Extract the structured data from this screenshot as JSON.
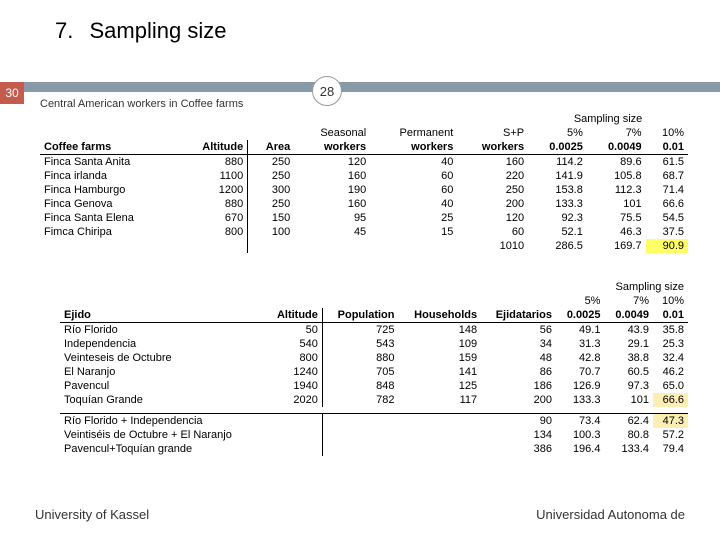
{
  "title_num": "7.",
  "title_text": "Sampling size",
  "page_badge": "30",
  "inner_badge": "28",
  "footer_left": "University of Kassel",
  "footer_right": "Universidad Autonoma de",
  "t1": {
    "caption": "Central American workers in Coffee farms",
    "group_header": "Sampling size",
    "c0": "Coffee farms",
    "c1": "Altitude",
    "c2": "Area",
    "c3a": "Seasonal",
    "c3b": "workers",
    "c4a": "Permanent",
    "c4b": "workers",
    "c5a": "S+P",
    "c5b": "workers",
    "c6": "5%",
    "c7": "7%",
    "c8": "10%",
    "r1": {
      "n": "Finca Santa Anita",
      "alt": "880",
      "area": "250",
      "sw": "120",
      "pw": "40",
      "sp": "160",
      "p5": "114.2",
      "p7": "89.6",
      "p10": "61.5"
    },
    "r2": {
      "n": "Finca irlanda",
      "alt": "1100",
      "area": "250",
      "sw": "160",
      "pw": "60",
      "sp": "220",
      "p5": "141.9",
      "p7": "105.8",
      "p10": "68.7"
    },
    "r3": {
      "n": "Finca Hamburgo",
      "alt": "1200",
      "area": "300",
      "sw": "190",
      "pw": "60",
      "sp": "250",
      "p5": "153.8",
      "p7": "112.3",
      "p10": "71.4"
    },
    "r4": {
      "n": "Finca Genova",
      "alt": "880",
      "area": "250",
      "sw": "160",
      "pw": "40",
      "sp": "200",
      "p5": "133.3",
      "p7": "101",
      "p10": "66.6"
    },
    "r5": {
      "n": "Finca Santa Elena",
      "alt": "670",
      "area": "150",
      "sw": "95",
      "pw": "25",
      "sp": "120",
      "p5": "92.3",
      "p7": "75.5",
      "p10": "54.5"
    },
    "r6": {
      "n": "Fimca Chiripa",
      "alt": "800",
      "area": "100",
      "sw": "45",
      "pw": "15",
      "sp": "60",
      "p5": "52.1",
      "p7": "46.3",
      "p10": "37.5"
    },
    "hdr_p5": "0.0025",
    "hdr_p7": "0.0049",
    "hdr_p8": "0.01",
    "tot_sp": "1010",
    "tot_p5": "286.5",
    "tot_p7": "169.7",
    "tot_p10": "90.9"
  },
  "t2": {
    "group_header": "Sampling size",
    "c0": "Ejido",
    "c1": "Altitude",
    "c2": "Population",
    "c3": "Households",
    "c4": "Ejidatarios",
    "c5": "5%",
    "c6": "7%",
    "c7": "10%",
    "hdr_p5": "0.0025",
    "hdr_p6": "0.0049",
    "hdr_p7": "0.01",
    "r1": {
      "n": "Río Florido",
      "alt": "50",
      "pop": "725",
      "hh": "148",
      "ej": "56",
      "p5": "49.1",
      "p7": "43.9",
      "p10": "35.8"
    },
    "r2": {
      "n": "Independencia",
      "alt": "540",
      "pop": "543",
      "hh": "109",
      "ej": "34",
      "p5": "31.3",
      "p7": "29.1",
      "p10": "25.3"
    },
    "r3": {
      "n": "Veinteseis de Octubre",
      "alt": "800",
      "pop": "880",
      "hh": "159",
      "ej": "48",
      "p5": "42.8",
      "p7": "38.8",
      "p10": "32.4"
    },
    "r4": {
      "n": "El Naranjo",
      "alt": "1240",
      "pop": "705",
      "hh": "141",
      "ej": "86",
      "p5": "70.7",
      "p7": "60.5",
      "p10": "46.2"
    },
    "r5": {
      "n": "Pavencul",
      "alt": "1940",
      "pop": "848",
      "hh": "125",
      "ej": "186",
      "p5": "126.9",
      "p7": "97.3",
      "p10": "65.0"
    },
    "r6": {
      "n": "Toquían Grande",
      "alt": "2020",
      "pop": "782",
      "hh": "117",
      "ej": "200",
      "p5": "133.3",
      "p7": "101",
      "p10": "66.6"
    },
    "s1": {
      "n": "Río Florido + Independencia",
      "ej": "90",
      "p5": "73.4",
      "p7": "62.4",
      "p10": "47.3"
    },
    "s2": {
      "n": "Veintiséis de Octubre + El Naranjo",
      "ej": "134",
      "p5": "100.3",
      "p7": "80.8",
      "p10": "57.2"
    },
    "s3": {
      "n": "Pavencul+Toquían grande",
      "ej": "386",
      "p5": "196.4",
      "p7": "133.4",
      "p10": "79.4"
    }
  }
}
